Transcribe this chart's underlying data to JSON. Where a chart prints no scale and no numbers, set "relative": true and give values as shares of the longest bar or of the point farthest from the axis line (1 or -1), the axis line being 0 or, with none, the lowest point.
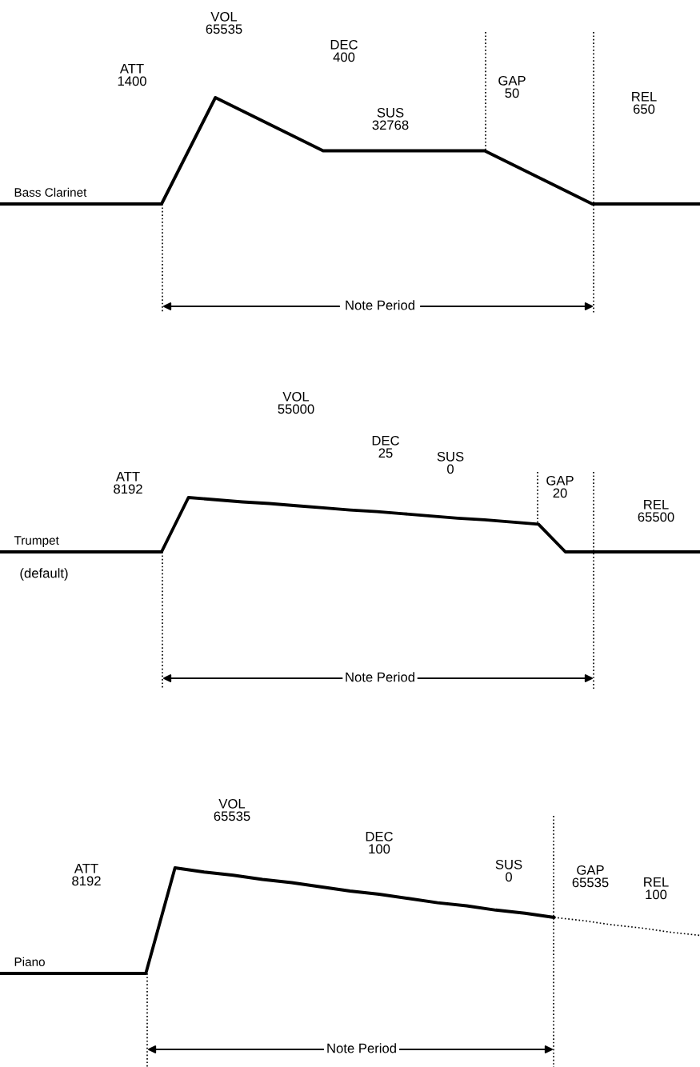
{
  "chart_data": [
    {
      "type": "line",
      "relative": true,
      "categories": [
        null,
        null,
        null,
        null,
        null,
        null,
        null,
        null,
        null,
        null,
        null,
        null,
        null,
        null
      ],
      "series": [
        {
          "name": "Bass Clarinet",
          "color": "#000000",
          "values": [
            0,
            0,
            0,
            0,
            1,
            0.75,
            0.5,
            0.5,
            0.5,
            0.5,
            0.25,
            0,
            0,
            0
          ]
        }
      ],
      "annotations": [
        "VOL\n65535",
        "ATT\n1400",
        "DEC\n400",
        "SUS\n32768",
        "GAP\n50",
        "REL\n650",
        "Note Period"
      ]
    },
    {
      "type": "line",
      "relative": true,
      "categories": [
        null,
        null,
        null,
        null,
        null,
        null,
        null,
        null,
        null,
        null,
        null,
        null,
        null,
        null,
        null,
        null,
        null,
        null,
        null,
        null,
        null,
        null,
        null,
        null,
        null,
        null,
        null
      ],
      "series": [
        {
          "name": "Trumpet",
          "color": "#000000",
          "values": [
            0,
            0,
            0,
            0,
            0,
            0,
            0,
            1,
            0.96,
            0.92,
            0.89,
            0.85,
            0.81,
            0.77,
            0.74,
            0.7,
            0.66,
            0.62,
            0.59,
            0.55,
            0.51,
            0,
            0,
            0,
            0,
            0,
            0
          ]
        }
      ],
      "annotations": [
        "VOL\n55000",
        "ATT\n8192",
        "DEC\n25",
        "SUS\n0",
        "GAP\n20",
        "REL\n65500",
        "(default)",
        "Note Period"
      ]
    },
    {
      "type": "line",
      "relative": true,
      "categories": [
        null,
        null,
        null,
        null,
        null,
        null,
        null,
        null,
        null,
        null,
        null,
        null,
        null,
        null,
        null,
        null,
        null,
        null,
        null,
        null,
        null,
        null,
        null,
        null,
        null
      ],
      "series": [
        {
          "name": "Piano",
          "color": "#000000",
          "values": [
            0,
            0,
            0,
            0,
            0,
            0,
            1,
            0.96,
            0.93,
            0.89,
            0.86,
            0.82,
            0.78,
            0.75,
            0.71,
            0.67,
            0.64,
            0.6,
            0.57,
            0.53,
            null,
            null,
            null,
            null,
            null
          ]
        },
        {
          "color": "#000000",
          "line_style": "dotted",
          "values": [
            null,
            null,
            null,
            null,
            null,
            null,
            null,
            null,
            null,
            null,
            null,
            null,
            null,
            null,
            null,
            null,
            null,
            null,
            null,
            0.53,
            0.5,
            0.46,
            0.43,
            0.39,
            0.36
          ]
        }
      ],
      "annotations": [
        "VOL\n65535",
        "ATT\n8192",
        "DEC\n100",
        "SUS\n0",
        "GAP\n65535",
        "REL\n100",
        "Note Period"
      ]
    }
  ]
}
